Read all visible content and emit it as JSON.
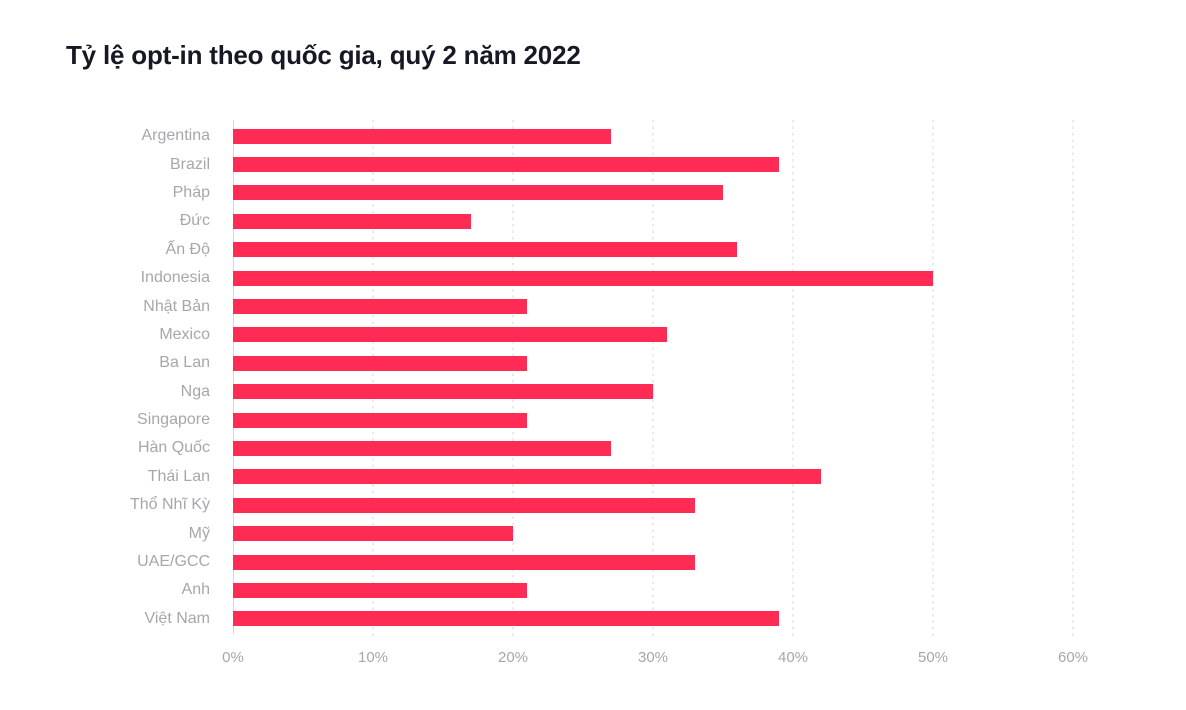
{
  "page": {
    "background": "#ffffff"
  },
  "colors": {
    "bar": "#fe2c55",
    "title": "#161823",
    "label": "#a6a7ad",
    "tick": "#a6a7ad",
    "axis_line": "#d8d8dc",
    "gridline": "#e9e9ee"
  },
  "chart_data": {
    "type": "bar",
    "orientation": "horizontal",
    "title": "Tỷ lệ opt-in theo quốc gia, quý 2 năm 2022",
    "categories": [
      "Argentina",
      "Brazil",
      "Pháp",
      "Đức",
      "Ấn Độ",
      "Indonesia",
      "Nhật Bản",
      "Mexico",
      "Ba Lan",
      "Nga",
      "Singapore",
      "Hàn Quốc",
      "Thái Lan",
      "Thổ Nhĩ Kỳ",
      "Mỹ",
      "UAE/GCC",
      "Anh",
      "Việt Nam"
    ],
    "values": [
      27,
      39,
      35,
      17,
      36,
      50,
      21,
      31,
      21,
      30,
      21,
      27,
      42,
      33,
      20,
      33,
      21,
      39
    ],
    "unit": "%",
    "xlabel": "",
    "ylabel": "",
    "xlim": [
      0,
      60
    ],
    "x_ticks": [
      "0%",
      "10%",
      "20%",
      "30%",
      "40%",
      "50%",
      "60%"
    ],
    "x_tick_values": [
      0,
      10,
      20,
      30,
      40,
      50,
      60
    ],
    "grid": "vertical-dotted",
    "legend": "none",
    "bar_color": "#fe2c55"
  }
}
